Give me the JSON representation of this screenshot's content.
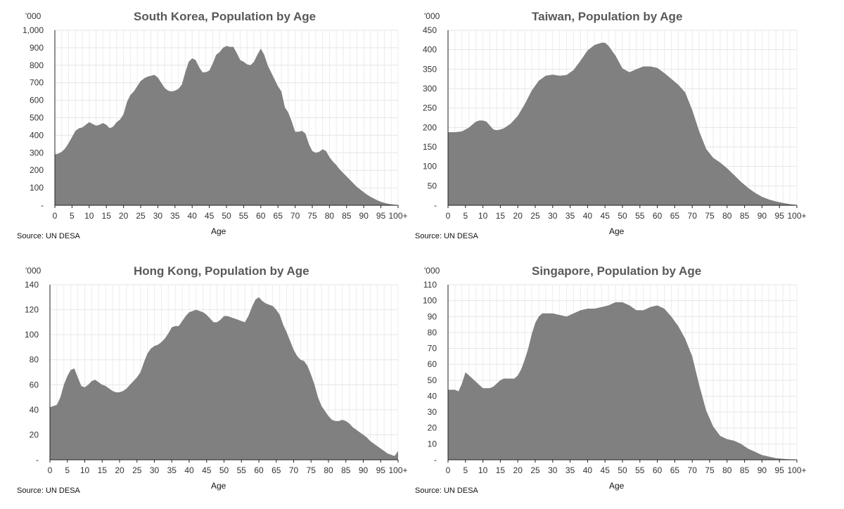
{
  "chart_data": [
    {
      "type": "area",
      "title": "South Korea, Population by Age",
      "unit_label": "'000",
      "xlabel": "Age",
      "source": "Source: UN DESA",
      "ylim": [
        0,
        1000
      ],
      "yticks": [
        0,
        100,
        200,
        300,
        400,
        500,
        600,
        700,
        800,
        900,
        1000
      ],
      "ytick_labels": [
        "-",
        "100",
        "200",
        "300",
        "400",
        "500",
        "600",
        "700",
        "800",
        "900",
        "1,000"
      ],
      "xticks": [
        0,
        5,
        10,
        15,
        20,
        25,
        30,
        35,
        40,
        45,
        50,
        55,
        60,
        65,
        70,
        75,
        80,
        85,
        90,
        95,
        100
      ],
      "xtick_labels": [
        "0",
        "5",
        "10",
        "15",
        "20",
        "25",
        "30",
        "35",
        "40",
        "45",
        "50",
        "55",
        "60",
        "65",
        "70",
        "75",
        "80",
        "85",
        "90",
        "95",
        "100+"
      ],
      "series": [
        {
          "name": "Population",
          "x": [
            0,
            1,
            2,
            3,
            4,
            5,
            6,
            7,
            8,
            9,
            10,
            11,
            12,
            13,
            14,
            15,
            16,
            17,
            18,
            19,
            20,
            21,
            22,
            23,
            24,
            25,
            26,
            27,
            28,
            29,
            30,
            31,
            32,
            33,
            34,
            35,
            36,
            37,
            38,
            39,
            40,
            41,
            42,
            43,
            44,
            45,
            46,
            47,
            48,
            49,
            50,
            51,
            52,
            53,
            54,
            55,
            56,
            57,
            58,
            59,
            60,
            61,
            62,
            63,
            64,
            65,
            66,
            67,
            68,
            69,
            70,
            71,
            72,
            73,
            74,
            75,
            76,
            77,
            78,
            79,
            80,
            81,
            82,
            83,
            84,
            85,
            86,
            87,
            88,
            89,
            90,
            91,
            92,
            93,
            94,
            95,
            96,
            97,
            98,
            99,
            100
          ],
          "values": [
            290,
            295,
            305,
            325,
            355,
            390,
            425,
            440,
            445,
            460,
            475,
            465,
            455,
            460,
            470,
            460,
            440,
            450,
            475,
            490,
            520,
            590,
            630,
            650,
            680,
            710,
            725,
            735,
            740,
            745,
            730,
            700,
            670,
            655,
            650,
            655,
            665,
            690,
            760,
            820,
            840,
            830,
            790,
            760,
            760,
            770,
            810,
            860,
            875,
            900,
            910,
            905,
            905,
            870,
            830,
            820,
            805,
            800,
            820,
            860,
            895,
            860,
            800,
            760,
            720,
            680,
            650,
            560,
            530,
            480,
            420,
            420,
            425,
            410,
            350,
            310,
            300,
            305,
            320,
            310,
            275,
            250,
            230,
            205,
            185,
            165,
            145,
            125,
            105,
            90,
            75,
            60,
            48,
            38,
            28,
            20,
            14,
            9,
            6,
            3,
            2
          ]
        }
      ]
    },
    {
      "type": "area",
      "title": "Taiwan, Population by Age",
      "unit_label": "'000",
      "xlabel": "Age",
      "source": "Source: UN DESA",
      "ylim": [
        0,
        450
      ],
      "yticks": [
        0,
        50,
        100,
        150,
        200,
        250,
        300,
        350,
        400,
        450
      ],
      "ytick_labels": [
        "-",
        "50",
        "100",
        "150",
        "200",
        "250",
        "300",
        "350",
        "400",
        "450"
      ],
      "xticks": [
        0,
        5,
        10,
        15,
        20,
        25,
        30,
        35,
        40,
        45,
        50,
        55,
        60,
        65,
        70,
        75,
        80,
        85,
        90,
        95,
        100
      ],
      "xtick_labels": [
        "0",
        "5",
        "10",
        "15",
        "20",
        "25",
        "30",
        "35",
        "40",
        "45",
        "50",
        "55",
        "60",
        "65",
        "70",
        "75",
        "80",
        "85",
        "90",
        "95",
        "100+"
      ],
      "series": [
        {
          "name": "Population",
          "x": [
            0,
            2,
            4,
            6,
            8,
            9,
            10,
            11,
            12,
            13,
            14,
            15,
            16,
            18,
            20,
            22,
            24,
            26,
            28,
            30,
            32,
            34,
            36,
            38,
            40,
            42,
            44,
            45,
            46,
            48,
            50,
            52,
            54,
            56,
            58,
            60,
            62,
            64,
            66,
            68,
            70,
            72,
            74,
            76,
            78,
            80,
            82,
            84,
            86,
            88,
            90,
            92,
            94,
            96,
            98,
            100
          ],
          "values": [
            188,
            188,
            190,
            200,
            215,
            218,
            218,
            215,
            205,
            195,
            193,
            195,
            198,
            210,
            230,
            260,
            295,
            320,
            333,
            336,
            333,
            335,
            348,
            372,
            398,
            412,
            418,
            418,
            410,
            385,
            352,
            342,
            350,
            357,
            357,
            353,
            340,
            325,
            310,
            290,
            245,
            190,
            145,
            122,
            110,
            95,
            78,
            60,
            45,
            32,
            22,
            15,
            10,
            6,
            3,
            1
          ]
        }
      ]
    },
    {
      "type": "area",
      "title": "Hong Kong, Population by Age",
      "unit_label": "'000",
      "xlabel": "Age",
      "source": "Source: UN DESA",
      "ylim": [
        0,
        140
      ],
      "yticks": [
        0,
        20,
        40,
        60,
        80,
        100,
        120,
        140
      ],
      "ytick_labels": [
        "-",
        "20",
        "40",
        "60",
        "80",
        "100",
        "120",
        "140"
      ],
      "xticks": [
        0,
        5,
        10,
        15,
        20,
        25,
        30,
        35,
        40,
        45,
        50,
        55,
        60,
        65,
        70,
        75,
        80,
        85,
        90,
        95,
        100
      ],
      "xtick_labels": [
        "0",
        "5",
        "10",
        "15",
        "20",
        "25",
        "30",
        "35",
        "40",
        "45",
        "50",
        "55",
        "60",
        "65",
        "70",
        "75",
        "80",
        "85",
        "90",
        "95",
        "100+"
      ],
      "series": [
        {
          "name": "Population",
          "x": [
            0,
            1,
            2,
            3,
            4,
            5,
            6,
            7,
            8,
            9,
            10,
            11,
            12,
            13,
            14,
            15,
            16,
            17,
            18,
            19,
            20,
            21,
            22,
            23,
            24,
            25,
            26,
            27,
            28,
            29,
            30,
            31,
            32,
            33,
            34,
            35,
            36,
            37,
            38,
            39,
            40,
            41,
            42,
            43,
            44,
            45,
            46,
            47,
            48,
            49,
            50,
            51,
            52,
            53,
            54,
            55,
            56,
            57,
            58,
            59,
            60,
            61,
            62,
            63,
            64,
            65,
            66,
            67,
            68,
            69,
            70,
            71,
            72,
            73,
            74,
            75,
            76,
            77,
            78,
            79,
            80,
            81,
            82,
            83,
            84,
            85,
            86,
            87,
            88,
            89,
            90,
            91,
            92,
            93,
            94,
            95,
            96,
            97,
            98,
            99,
            100
          ],
          "values": [
            42,
            43,
            44,
            50,
            60,
            67,
            72,
            73,
            66,
            59,
            58,
            60,
            63,
            64,
            62,
            60,
            59,
            57,
            55,
            54,
            54,
            55,
            57,
            60,
            63,
            66,
            70,
            78,
            85,
            89,
            91,
            92,
            94,
            97,
            101,
            106,
            107,
            107,
            111,
            115,
            118,
            119,
            120,
            119,
            118,
            116,
            113,
            110,
            110,
            112,
            115,
            115,
            114,
            113,
            112,
            111,
            110,
            115,
            122,
            128,
            130,
            127,
            125,
            124,
            123,
            120,
            116,
            108,
            102,
            95,
            88,
            83,
            80,
            79,
            75,
            68,
            60,
            50,
            43,
            39,
            35,
            32,
            31,
            31,
            32,
            31,
            29,
            26,
            24,
            22,
            20,
            18,
            15,
            13,
            11,
            9,
            7,
            5,
            4,
            3,
            7
          ]
        }
      ]
    },
    {
      "type": "area",
      "title": "Singapore, Population by Age",
      "unit_label": "'000",
      "xlabel": "Age",
      "source": "Source: UN DESA",
      "ylim": [
        0,
        110
      ],
      "yticks": [
        0,
        10,
        20,
        30,
        40,
        50,
        60,
        70,
        80,
        90,
        100,
        110
      ],
      "ytick_labels": [
        "-",
        "10",
        "20",
        "30",
        "40",
        "50",
        "60",
        "70",
        "80",
        "90",
        "100",
        "110"
      ],
      "xticks": [
        0,
        5,
        10,
        15,
        20,
        25,
        30,
        35,
        40,
        45,
        50,
        55,
        60,
        65,
        70,
        75,
        80,
        85,
        90,
        95,
        100
      ],
      "xtick_labels": [
        "0",
        "5",
        "10",
        "15",
        "20",
        "25",
        "30",
        "35",
        "40",
        "45",
        "50",
        "55",
        "60",
        "65",
        "70",
        "75",
        "80",
        "85",
        "90",
        "95",
        "100+"
      ],
      "series": [
        {
          "name": "Population",
          "x": [
            0,
            1,
            2,
            3,
            4,
            5,
            6,
            7,
            8,
            9,
            10,
            11,
            12,
            13,
            14,
            15,
            16,
            17,
            18,
            19,
            20,
            21,
            22,
            23,
            24,
            25,
            26,
            27,
            28,
            29,
            30,
            32,
            34,
            36,
            38,
            40,
            42,
            44,
            46,
            48,
            50,
            52,
            54,
            56,
            58,
            60,
            62,
            64,
            66,
            68,
            70,
            72,
            74,
            76,
            78,
            80,
            82,
            84,
            86,
            88,
            90,
            92,
            94,
            96,
            98,
            100
          ],
          "values": [
            44,
            44,
            44,
            43,
            48,
            55,
            53,
            51,
            49,
            47,
            45,
            45,
            45,
            46,
            48,
            50,
            51,
            51,
            51,
            51,
            53,
            57,
            63,
            70,
            79,
            86,
            90,
            92,
            92,
            92,
            92,
            91,
            90,
            92,
            94,
            95,
            95,
            96,
            97,
            99,
            99,
            97,
            94,
            94,
            96,
            97,
            95,
            90,
            84,
            76,
            65,
            47,
            31,
            21,
            15,
            13,
            12,
            10,
            7,
            5,
            3,
            2,
            1,
            0.6,
            0.3,
            0.2
          ]
        }
      ]
    }
  ]
}
